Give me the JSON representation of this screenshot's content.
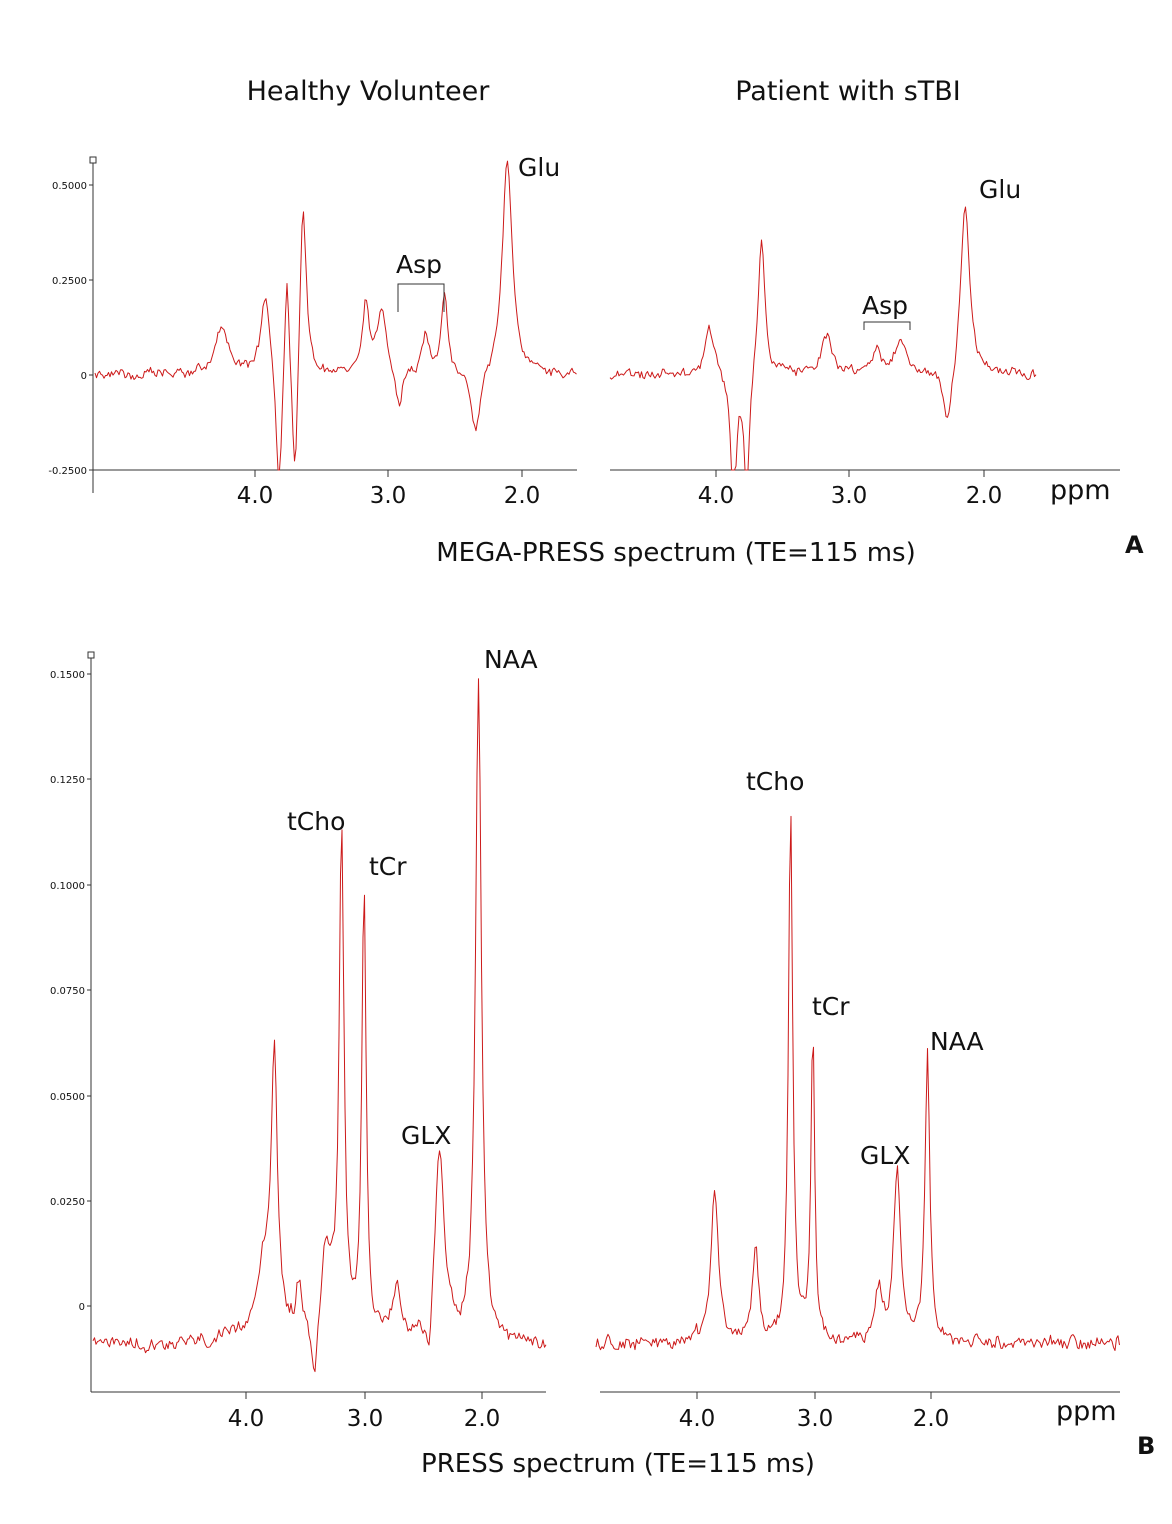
{
  "titles": {
    "left": "Healthy Volunteer",
    "right": "Patient with sTBI"
  },
  "panel_a": {
    "caption": "MEGA-PRESS spectrum (TE=115 ms)",
    "letter": "A",
    "ppm": "ppm",
    "peak_labels": {
      "glu": "Glu",
      "asp": "Asp"
    }
  },
  "panel_b": {
    "caption": "PRESS spectrum (TE=115 ms)",
    "letter": "B",
    "ppm": "ppm",
    "peak_labels": {
      "naa": "NAA",
      "tcho": "tCho",
      "tcr": "tCr",
      "glx": "GLX"
    }
  },
  "colors": {
    "spectrum": "#cc1a1a",
    "axis": "#333333"
  },
  "chart_data": [
    {
      "type": "line",
      "panel": "A",
      "title": "MEGA-PRESS spectrum (TE=115 ms)",
      "xlabel": "ppm",
      "ylabel": "",
      "y_ticks": [
        "0.5000",
        "0.2500",
        "0",
        "-0.2500"
      ],
      "y_tick_values": [
        0.5,
        0.25,
        0,
        -0.25
      ],
      "ylim": [
        -0.25,
        0.56
      ],
      "x_ticks": [
        "4.0",
        "3.0",
        "2.0"
      ],
      "x_tick_values": [
        4.0,
        3.0,
        2.0
      ],
      "xlim": [
        5.2,
        1.6
      ],
      "noise": 0.02,
      "baseline": 0.0,
      "series": [
        {
          "name": "Healthy Volunteer",
          "peaks": [
            {
              "ppm": 2.11,
              "amp": 0.56,
              "w": 0.045,
              "label": "Glu"
            },
            {
              "ppm": 2.35,
              "amp": -0.17,
              "w": 0.04
            },
            {
              "ppm": 2.58,
              "amp": 0.22,
              "w": 0.03,
              "label": "Asp"
            },
            {
              "ppm": 2.72,
              "amp": 0.1,
              "w": 0.03
            },
            {
              "ppm": 2.92,
              "amp": -0.09,
              "w": 0.03
            },
            {
              "ppm": 3.05,
              "amp": 0.16,
              "w": 0.04
            },
            {
              "ppm": 3.17,
              "amp": 0.18,
              "w": 0.03
            },
            {
              "ppm": 3.64,
              "amp": 0.47,
              "w": 0.03
            },
            {
              "ppm": 3.7,
              "amp": -0.35,
              "w": 0.025
            },
            {
              "ppm": 3.76,
              "amp": 0.3,
              "w": 0.02
            },
            {
              "ppm": 3.82,
              "amp": -0.35,
              "w": 0.025
            },
            {
              "ppm": 3.92,
              "amp": 0.22,
              "w": 0.04
            },
            {
              "ppm": 4.25,
              "amp": 0.12,
              "w": 0.06
            }
          ]
        },
        {
          "name": "Patient with sTBI",
          "peaks": [
            {
              "ppm": 2.14,
              "amp": 0.46,
              "w": 0.04,
              "label": "Glu"
            },
            {
              "ppm": 2.27,
              "amp": -0.15,
              "w": 0.04
            },
            {
              "ppm": 2.62,
              "amp": 0.1,
              "w": 0.05,
              "label": "Asp"
            },
            {
              "ppm": 2.8,
              "amp": 0.06,
              "w": 0.04
            },
            {
              "ppm": 3.17,
              "amp": 0.1,
              "w": 0.05
            },
            {
              "ppm": 3.66,
              "amp": 0.37,
              "w": 0.03
            },
            {
              "ppm": 3.77,
              "amp": -0.35,
              "w": 0.02
            },
            {
              "ppm": 3.87,
              "amp": -0.35,
              "w": 0.025
            },
            {
              "ppm": 4.05,
              "amp": 0.13,
              "w": 0.04
            }
          ]
        }
      ]
    },
    {
      "type": "line",
      "panel": "B",
      "title": "PRESS spectrum (TE=115 ms)",
      "xlabel": "ppm",
      "ylabel": "",
      "y_ticks": [
        "0.1500",
        "0.1250",
        "0.1000",
        "0.0750",
        "0.0500",
        "0.0250",
        "0"
      ],
      "y_tick_values": [
        0.15,
        0.125,
        0.1,
        0.075,
        0.05,
        0.025,
        0
      ],
      "ylim": [
        -0.02,
        0.155
      ],
      "x_ticks": [
        "4.0",
        "3.0",
        "2.0"
      ],
      "x_tick_values": [
        4.0,
        3.0,
        2.0
      ],
      "xlim": [
        5.3,
        1.5
      ],
      "noise": 0.0025,
      "baseline": -0.009,
      "series": [
        {
          "name": "Healthy Volunteer",
          "peaks": [
            {
              "ppm": 2.03,
              "amp": 0.155,
              "w": 0.03,
              "label": "NAA"
            },
            {
              "ppm": 2.36,
              "amp": 0.046,
              "w": 0.05,
              "label": "GLX"
            },
            {
              "ppm": 2.45,
              "amp": -0.012,
              "w": 0.03
            },
            {
              "ppm": 2.72,
              "amp": 0.012,
              "w": 0.04
            },
            {
              "ppm": 3.0,
              "amp": 0.108,
              "w": 0.022,
              "label": "tCr"
            },
            {
              "ppm": 3.19,
              "amp": 0.12,
              "w": 0.025,
              "label": "tCho"
            },
            {
              "ppm": 3.32,
              "amp": 0.02,
              "w": 0.06
            },
            {
              "ppm": 3.42,
              "amp": -0.015,
              "w": 0.03
            },
            {
              "ppm": 3.55,
              "amp": 0.012,
              "w": 0.03
            },
            {
              "ppm": 3.76,
              "amp": 0.065,
              "w": 0.03
            },
            {
              "ppm": 3.85,
              "amp": 0.018,
              "w": 0.08
            }
          ]
        },
        {
          "name": "Patient with sTBI",
          "peaks": [
            {
              "ppm": 2.03,
              "amp": 0.068,
              "w": 0.025,
              "label": "NAA"
            },
            {
              "ppm": 2.29,
              "amp": 0.04,
              "w": 0.035,
              "label": "GLX"
            },
            {
              "ppm": 2.45,
              "amp": 0.012,
              "w": 0.04
            },
            {
              "ppm": 3.01,
              "amp": 0.075,
              "w": 0.018,
              "label": "tCr"
            },
            {
              "ppm": 3.2,
              "amp": 0.128,
              "w": 0.022,
              "label": "tCho"
            },
            {
              "ppm": 3.5,
              "amp": 0.022,
              "w": 0.03
            },
            {
              "ppm": 3.85,
              "amp": 0.035,
              "w": 0.04
            }
          ]
        }
      ]
    }
  ]
}
